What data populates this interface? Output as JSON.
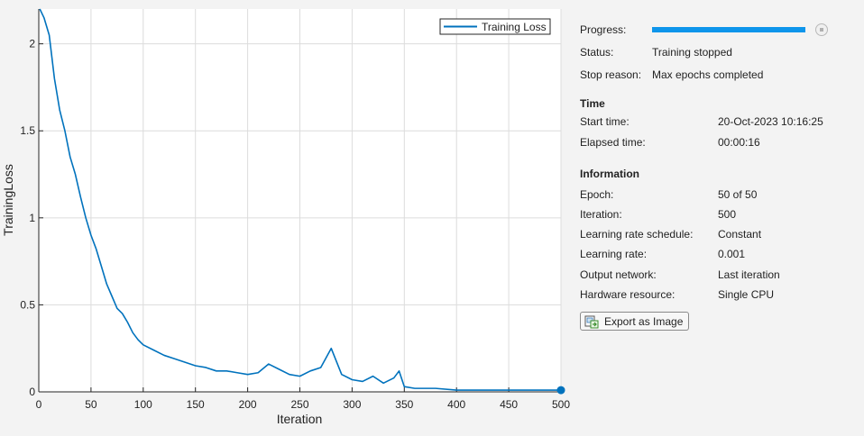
{
  "chart_data": {
    "type": "line",
    "xlabel": "Iteration",
    "ylabel": "TrainingLoss",
    "xlim": [
      0,
      500
    ],
    "ylim": [
      0,
      2.2
    ],
    "xticks": [
      0,
      50,
      100,
      150,
      200,
      250,
      300,
      350,
      400,
      450,
      500
    ],
    "yticks": [
      0,
      0.5,
      1,
      1.5,
      2
    ],
    "grid": true,
    "legend_position": "top-right",
    "series": [
      {
        "name": "Training Loss",
        "color": "#0072bd",
        "x": [
          1,
          5,
          10,
          15,
          20,
          25,
          30,
          35,
          40,
          45,
          50,
          55,
          60,
          65,
          70,
          75,
          80,
          85,
          90,
          95,
          100,
          110,
          120,
          130,
          140,
          150,
          160,
          170,
          180,
          190,
          200,
          210,
          220,
          230,
          240,
          250,
          260,
          270,
          280,
          290,
          300,
          310,
          320,
          330,
          340,
          345,
          350,
          360,
          380,
          400,
          420,
          440,
          460,
          480,
          500
        ],
        "y": [
          2.2,
          2.15,
          2.05,
          1.8,
          1.62,
          1.5,
          1.35,
          1.25,
          1.12,
          1.0,
          0.9,
          0.82,
          0.72,
          0.62,
          0.55,
          0.48,
          0.45,
          0.4,
          0.34,
          0.3,
          0.27,
          0.24,
          0.21,
          0.19,
          0.17,
          0.15,
          0.14,
          0.12,
          0.12,
          0.11,
          0.1,
          0.11,
          0.16,
          0.13,
          0.1,
          0.09,
          0.12,
          0.14,
          0.25,
          0.1,
          0.07,
          0.06,
          0.09,
          0.05,
          0.08,
          0.12,
          0.03,
          0.02,
          0.02,
          0.01,
          0.01,
          0.01,
          0.01,
          0.01,
          0.01
        ]
      }
    ]
  },
  "panel": {
    "progress_label": "Progress:",
    "progress_fraction": 1.0,
    "progress_color": "#0e95eb",
    "status_label": "Status:",
    "status_value": "Training stopped",
    "stop_reason_label": "Stop reason:",
    "stop_reason_value": "Max epochs completed",
    "time_title": "Time",
    "start_time_label": "Start time:",
    "start_time_value": "20-Oct-2023 10:16:25",
    "elapsed_label": "Elapsed time:",
    "elapsed_value": "00:00:16",
    "info_title": "Information",
    "epoch_label": "Epoch:",
    "epoch_value": "50 of 50",
    "iteration_label": "Iteration:",
    "iteration_value": "500",
    "lr_schedule_label": "Learning rate schedule:",
    "lr_schedule_value": "Constant",
    "lr_label": "Learning rate:",
    "lr_value": "0.001",
    "output_label": "Output network:",
    "output_value": "Last iteration",
    "hardware_label": "Hardware resource:",
    "hardware_value": "Single CPU",
    "export_label": "Export as Image",
    "stop_icon": "stop-icon",
    "export_icon": "export-image-icon"
  }
}
